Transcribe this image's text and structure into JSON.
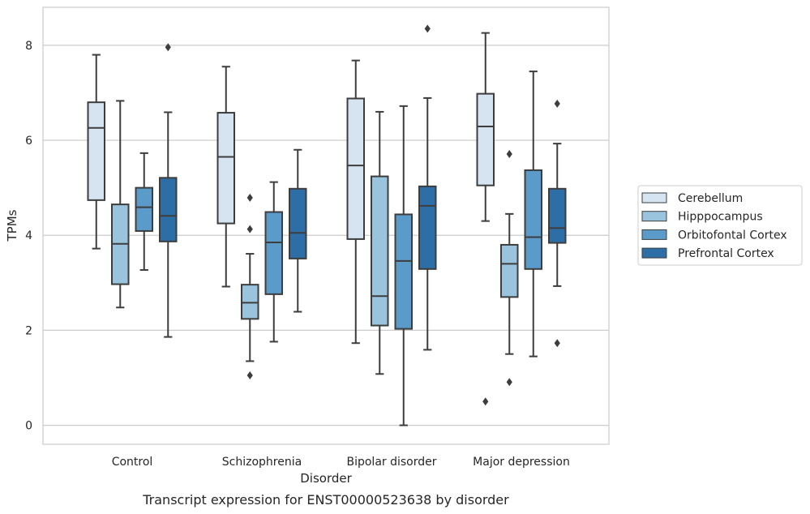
{
  "chart_data": {
    "type": "box",
    "title": "",
    "caption": "Transcript expression for ENST00000523638 by disorder",
    "xlabel": "Disorder",
    "ylabel": "TPMs",
    "ylim": [
      -0.4,
      8.8
    ],
    "yticks": [
      0,
      2,
      4,
      6,
      8
    ],
    "grid": "horizontal",
    "legend_position": "right",
    "categories": [
      "Control",
      "Schizophrenia",
      "Bipolar disorder",
      "Major depression"
    ],
    "series": [
      {
        "name": "Cerebellum",
        "color": "#d6e3f1",
        "boxes": [
          {
            "whislo": 3.72,
            "q1": 4.74,
            "med": 6.26,
            "q3": 6.8,
            "whishi": 7.8,
            "fliers": []
          },
          {
            "whislo": 2.92,
            "q1": 4.25,
            "med": 5.65,
            "q3": 6.58,
            "whishi": 7.55,
            "fliers": []
          },
          {
            "whislo": 1.73,
            "q1": 3.92,
            "med": 5.47,
            "q3": 6.88,
            "whishi": 7.68,
            "fliers": []
          },
          {
            "whislo": 4.3,
            "q1": 5.05,
            "med": 6.29,
            "q3": 6.98,
            "whishi": 8.26,
            "fliers": [
              0.5
            ]
          }
        ]
      },
      {
        "name": "Hipppocampus",
        "color": "#9ac4de",
        "boxes": [
          {
            "whislo": 2.48,
            "q1": 2.97,
            "med": 3.82,
            "q3": 4.65,
            "whishi": 6.83,
            "fliers": []
          },
          {
            "whislo": 1.35,
            "q1": 2.24,
            "med": 2.58,
            "q3": 2.96,
            "whishi": 3.61,
            "fliers": [
              1.05,
              4.13,
              4.79
            ]
          },
          {
            "whislo": 1.08,
            "q1": 2.1,
            "med": 2.72,
            "q3": 5.24,
            "whishi": 6.6,
            "fliers": []
          },
          {
            "whislo": 1.5,
            "q1": 2.7,
            "med": 3.4,
            "q3": 3.8,
            "whishi": 4.45,
            "fliers": [
              0.91,
              5.71
            ]
          }
        ]
      },
      {
        "name": "Orbitofontal Cortex",
        "color": "#5a9bc9",
        "boxes": [
          {
            "whislo": 3.27,
            "q1": 4.09,
            "med": 4.59,
            "q3": 5.0,
            "whishi": 5.73,
            "fliers": []
          },
          {
            "whislo": 1.76,
            "q1": 2.76,
            "med": 3.85,
            "q3": 4.49,
            "whishi": 5.12,
            "fliers": []
          },
          {
            "whislo": 0.0,
            "q1": 2.03,
            "med": 3.46,
            "q3": 4.44,
            "whishi": 6.72,
            "fliers": []
          },
          {
            "whislo": 1.45,
            "q1": 3.29,
            "med": 3.96,
            "q3": 5.37,
            "whishi": 7.45,
            "fliers": []
          }
        ]
      },
      {
        "name": "Prefrontal Cortex",
        "color": "#2d6ea7",
        "boxes": [
          {
            "whislo": 1.86,
            "q1": 3.87,
            "med": 4.41,
            "q3": 5.21,
            "whishi": 6.59,
            "fliers": [
              7.96
            ]
          },
          {
            "whislo": 2.39,
            "q1": 3.51,
            "med": 4.05,
            "q3": 4.98,
            "whishi": 5.8,
            "fliers": []
          },
          {
            "whislo": 1.59,
            "q1": 3.29,
            "med": 4.62,
            "q3": 5.03,
            "whishi": 6.89,
            "fliers": [
              8.35
            ]
          },
          {
            "whislo": 2.93,
            "q1": 3.84,
            "med": 4.15,
            "q3": 4.98,
            "whishi": 5.93,
            "fliers": [
              1.73,
              6.77
            ]
          }
        ]
      }
    ]
  }
}
